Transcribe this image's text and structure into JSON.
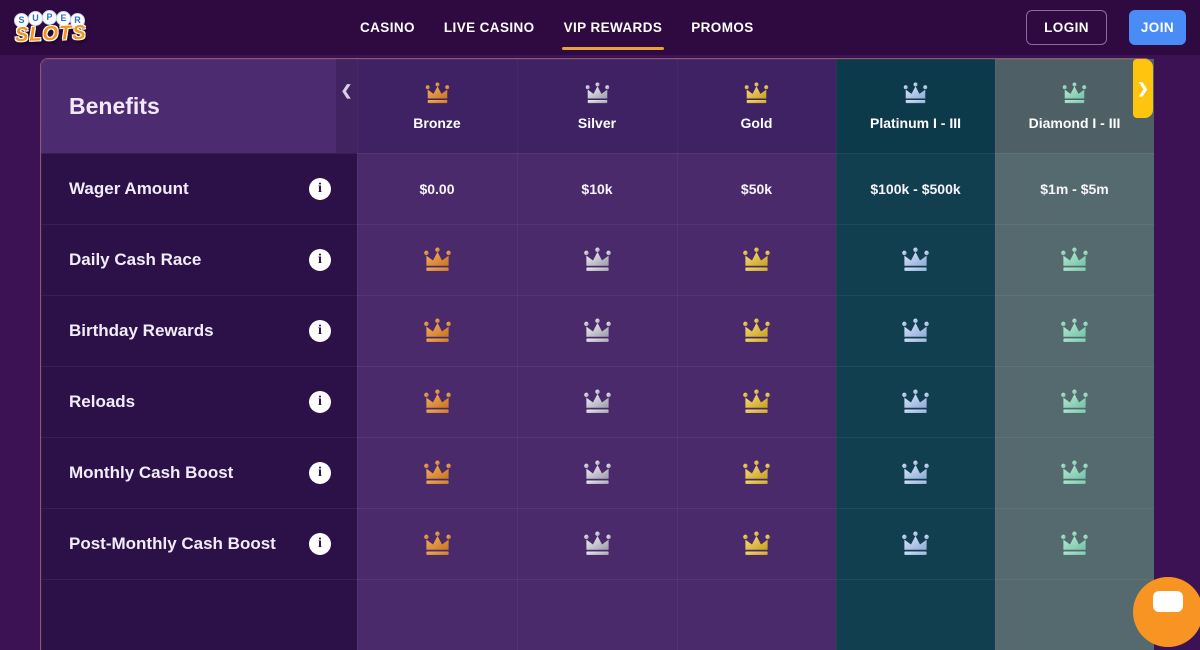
{
  "brand": {
    "name": "Super Slots",
    "super_letters": [
      "S",
      "U",
      "P",
      "E",
      "R"
    ],
    "slots_text": "SLOTS"
  },
  "nav": {
    "items": [
      {
        "id": "casino",
        "label": "CASINO",
        "active": false
      },
      {
        "id": "live-casino",
        "label": "LIVE CASINO",
        "active": false
      },
      {
        "id": "vip-rewards",
        "label": "VIP REWARDS",
        "active": true
      },
      {
        "id": "promos",
        "label": "PROMOS",
        "active": false
      }
    ]
  },
  "auth": {
    "login": "LOGIN",
    "join": "JOIN"
  },
  "table": {
    "benefits_header": "Benefits",
    "scroll_left_icon": "❮",
    "scroll_right_icon": "❯",
    "info_icon": "i",
    "tiers": [
      {
        "id": "bronze",
        "name": "Bronze",
        "header_bg": "#3e2263",
        "cell_bg": "#4b2a6c",
        "crown_light": "#f3b263",
        "crown_dark": "#c9741f"
      },
      {
        "id": "silver",
        "name": "Silver",
        "header_bg": "#3e2263",
        "cell_bg": "#4b2a6c",
        "crown_light": "#f4f4f8",
        "crown_dark": "#9b9ca8"
      },
      {
        "id": "gold",
        "name": "Gold",
        "header_bg": "#3e2263",
        "cell_bg": "#4b2a6c",
        "crown_light": "#f7e07a",
        "crown_dark": "#c7a01e"
      },
      {
        "id": "platinum",
        "name": "Platinum I - III",
        "header_bg": "#0d3a4a",
        "cell_bg": "#123f4f",
        "crown_light": "#dce8fb",
        "crown_dark": "#8fa9d8"
      },
      {
        "id": "diamond",
        "name": "Diamond I - III",
        "header_bg": "#4e6066",
        "cell_bg": "#546a6f",
        "crown_light": "#b9ecd5",
        "crown_dark": "#72c2a5"
      }
    ],
    "rows": [
      {
        "id": "wager-amount",
        "label": "Wager Amount",
        "type": "text",
        "values": [
          "$0.00",
          "$10k",
          "$50k",
          "$100k - $500k",
          "$1m - $5m"
        ]
      },
      {
        "id": "daily-cash-race",
        "label": "Daily Cash Race",
        "type": "crown"
      },
      {
        "id": "birthday-rewards",
        "label": "Birthday Rewards",
        "type": "crown"
      },
      {
        "id": "reloads",
        "label": "Reloads",
        "type": "crown"
      },
      {
        "id": "monthly-cash-boost",
        "label": "Monthly Cash Boost",
        "type": "crown"
      },
      {
        "id": "post-monthly-cash-boost",
        "label": "Post-Monthly Cash Boost",
        "type": "crown"
      },
      {
        "id": "next-row-partial",
        "label": "",
        "type": "empty"
      }
    ]
  },
  "colors": {
    "nav_bg": "#2e0a40",
    "page_bg": "#3c1254",
    "benefits_header_bg": "#4d2b71",
    "label_cell_bg": "#2b1147",
    "accent_underline": "#e8a33d",
    "join_bg": "#4a8cf5",
    "scroll_tab_bg": "#ffc40d",
    "chat_bg": "#f89422",
    "logo_orange": "#f7941d",
    "logo_blue": "#2a6fd6"
  }
}
